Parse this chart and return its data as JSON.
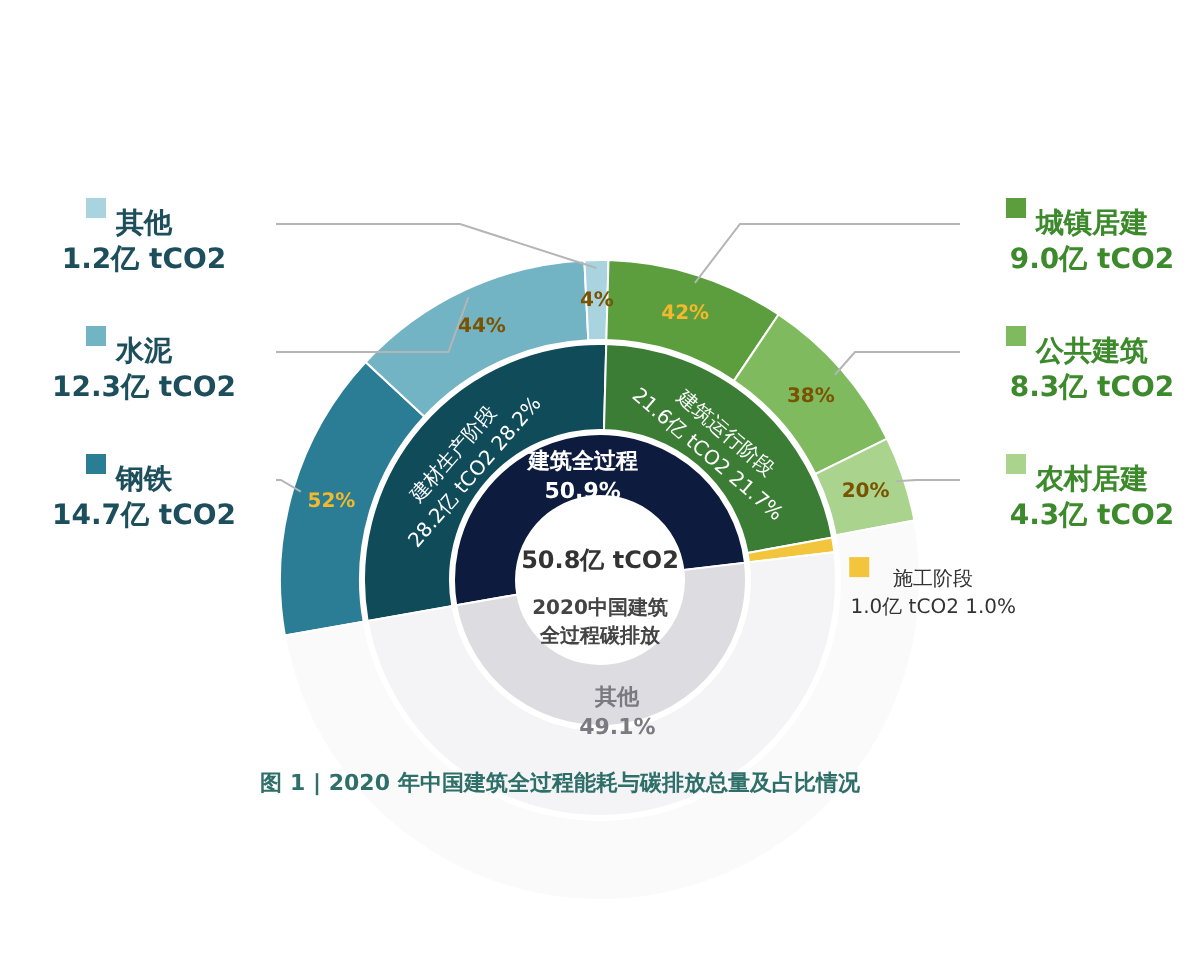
{
  "chart_data": [
    {
      "type": "donut",
      "title": "图 1 | 2020 年中国建筑全过程能耗与碳排放总量及占比情况",
      "categories": [
        "建筑全过程",
        "其他"
      ],
      "values": [
        50.9,
        49.1
      ],
      "colors": [
        "#0d1b3e",
        "#dddce1"
      ],
      "value_labels": [
        "50.9%",
        "49.1%"
      ],
      "annotations": [
        "50.8亿 tCO2",
        "2020中国建筑全过程碳排放"
      ]
    },
    {
      "type": "donut",
      "categories": [
        "建材生产阶段",
        "建筑运行阶段",
        "施工阶段",
        null
      ],
      "values": [
        28.2,
        21.7,
        1.0,
        49.1
      ],
      "colors": [
        "#104b5a",
        "#3b7d35",
        "#f3c53c",
        "#f4f4f6"
      ],
      "value_labels": [
        "28.2亿 tCO2 28.2%",
        "21.6亿 tCO2 21.7%",
        "1.0亿 tCO2 1.0%",
        null
      ]
    },
    {
      "type": "donut",
      "categories": [
        "钢铁",
        "水泥",
        "其他",
        "城镇居建",
        "公共建筑",
        "农村居建",
        null
      ],
      "values": [
        14.7,
        12.3,
        1.2,
        9.0,
        8.3,
        4.3,
        50.2
      ],
      "colors": [
        "#2a7d95",
        "#72b3c4",
        "#a9d4df",
        "#5c9e3e",
        "#7fbb5e",
        "#aad48d",
        "#fafafb"
      ],
      "value_labels": [
        "14.7亿 tCO2",
        "12.3亿 tCO2",
        "1.2亿 tCO2",
        "9.0亿 tCO2",
        "8.3亿 tCO2",
        "4.3亿 tCO2",
        null
      ],
      "annotations": [
        "52%",
        "44%",
        "4%",
        "42%",
        "38%",
        "20%"
      ],
      "legend": "right"
    }
  ]
}
